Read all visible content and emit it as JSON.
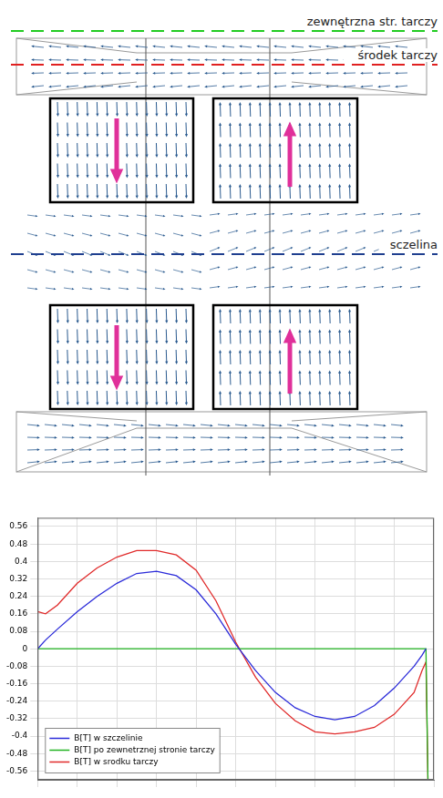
{
  "diagram": {
    "levels": [
      "zewnętrzna str. tarczy",
      "środek tarczy",
      "sczelina"
    ]
  },
  "chart_data": {
    "type": "line",
    "x": [
      0,
      2,
      5,
      10,
      15,
      20,
      25,
      30,
      35,
      40,
      45,
      50,
      55,
      60,
      65,
      70,
      75,
      80,
      85,
      90,
      95,
      97,
      98,
      98.5,
      100
    ],
    "series": [
      {
        "name": "B[T] w szczelinie",
        "color": "#2b2bd9",
        "line_style": "solid",
        "values": [
          0,
          0.04,
          0.09,
          0.17,
          0.24,
          0.3,
          0.345,
          0.355,
          0.335,
          0.27,
          0.16,
          0.02,
          -0.1,
          -0.2,
          -0.27,
          -0.31,
          -0.325,
          -0.31,
          -0.26,
          -0.18,
          -0.08,
          -0.03,
          0,
          null,
          null
        ]
      },
      {
        "name": "B[T] po zewnetrznej stronie tarczy",
        "color": "#22b322",
        "line_style": "solid",
        "values": [
          0,
          0,
          0,
          0,
          0,
          0,
          0,
          0,
          0,
          0,
          0,
          0,
          0,
          0,
          0,
          0,
          0,
          0,
          0,
          0,
          0,
          0,
          0,
          -0.6,
          null
        ]
      },
      {
        "name": "B[T] w srodku tarczy",
        "color": "#e02a2a",
        "line_style": "solid",
        "values": [
          0.17,
          0.16,
          0.2,
          0.3,
          0.37,
          0.42,
          0.45,
          0.45,
          0.43,
          0.36,
          0.22,
          0.03,
          -0.13,
          -0.25,
          -0.33,
          -0.38,
          -0.39,
          -0.38,
          -0.36,
          -0.3,
          -0.2,
          -0.1,
          -0.06,
          -0.6,
          null
        ]
      }
    ],
    "xlim": [
      0,
      100
    ],
    "xticks": [
      0,
      10,
      20,
      30,
      40,
      50,
      60,
      70,
      80,
      90,
      100
    ],
    "ylim": [
      -0.6,
      0.6
    ],
    "yticks": [
      0.56,
      0.48,
      0.4,
      0.32,
      0.24,
      0.16,
      0.08,
      0,
      -0.08,
      -0.16,
      -0.24,
      -0.32,
      -0.4,
      -0.48,
      -0.56
    ],
    "grid": true,
    "legend": "lower left",
    "tick_labels": "y"
  }
}
